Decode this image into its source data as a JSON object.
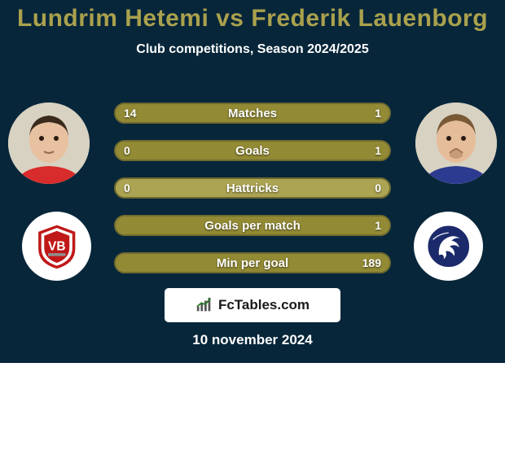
{
  "layout": {
    "card_bg": "#07263a",
    "title_color": "#aaa14d",
    "subtitle_color": "#ffffff",
    "text_color": "#ffffff"
  },
  "header": {
    "title": "Lundrim Hetemi vs Frederik Lauenborg",
    "subtitle": "Club competitions, Season 2024/2025"
  },
  "stats": {
    "bar_track_color": "#aca452",
    "bar_border_color": "#6f6a2f",
    "left_fill_color": "#928a34",
    "right_fill_color": "#928a34",
    "rows": [
      {
        "label": "Matches",
        "left_value": "14",
        "right_value": "1",
        "left_pct": 93,
        "right_pct": 7
      },
      {
        "label": "Goals",
        "left_value": "0",
        "right_value": "1",
        "left_pct": 0,
        "right_pct": 100
      },
      {
        "label": "Hattricks",
        "left_value": "0",
        "right_value": "0",
        "left_pct": 0,
        "right_pct": 0
      },
      {
        "label": "Goals per match",
        "left_value": "",
        "right_value": "1",
        "left_pct": 0,
        "right_pct": 100
      },
      {
        "label": "Min per goal",
        "left_value": "",
        "right_value": "189",
        "left_pct": 0,
        "right_pct": 100
      }
    ]
  },
  "branding": {
    "site_name": "FcTables.com",
    "date": "10 november 2024"
  },
  "players": {
    "left": {
      "skin": "#e8c1a0",
      "hair": "#3a2a1c",
      "shirt": "#d82b2b"
    },
    "right": {
      "skin": "#e6bd9a",
      "hair": "#7a5a36",
      "shirt": "#2c3a8f"
    }
  },
  "clubs": {
    "left": {
      "primary": "#c01818",
      "secondary": "#ffffff",
      "accent": "#8f8f8f"
    },
    "right": {
      "primary": "#1b2a6b",
      "secondary": "#ffffff"
    }
  }
}
